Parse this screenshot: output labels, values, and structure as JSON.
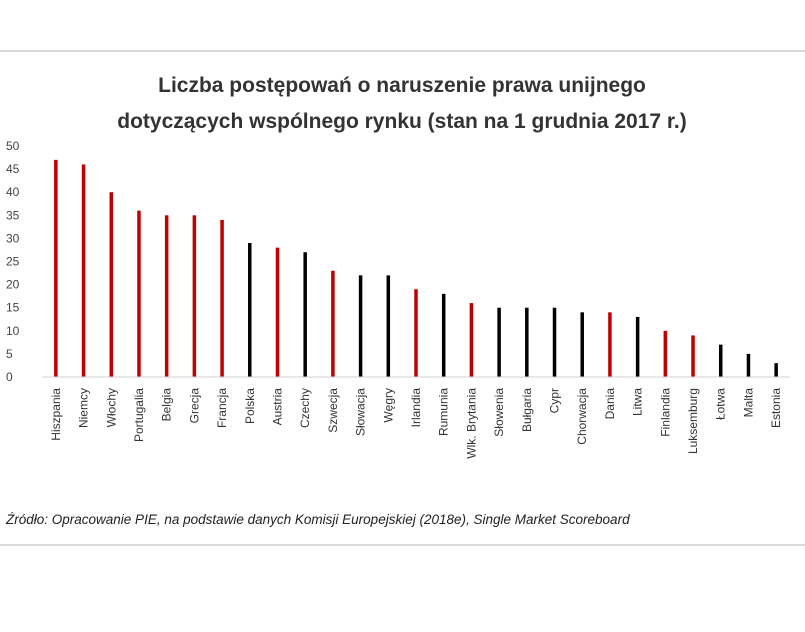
{
  "chart_data": {
    "type": "bar",
    "title_lines": [
      "Liczba postępowań o naruszenie prawa unijnego",
      "dotyczących wspólnego rynku (stan na 1 grudnia 2017 r.)"
    ],
    "xlabel": "",
    "ylabel": "",
    "ylim": [
      0,
      50
    ],
    "yticks": [
      0,
      5,
      10,
      15,
      20,
      25,
      30,
      35,
      40,
      45,
      50
    ],
    "grid": false,
    "legend": "none",
    "categories": [
      "Hiszpania",
      "Niemcy",
      "Włochy",
      "Portugalia",
      "Belgia",
      "Grecja",
      "Francja",
      "Polska",
      "Austria",
      "Czechy",
      "Szwecja",
      "Słowacja",
      "Węgry",
      "Irlandia",
      "Rumunia",
      "Wlk. Brytania",
      "Słowenia",
      "Bułgaria",
      "Cypr",
      "Chorwacja",
      "Dania",
      "Litwa",
      "Finlandia",
      "Luksemburg",
      "Łotwa",
      "Malta",
      "Estonia"
    ],
    "values": [
      47,
      46,
      40,
      36,
      35,
      35,
      34,
      29,
      28,
      27,
      23,
      22,
      22,
      19,
      18,
      16,
      15,
      15,
      15,
      14,
      14,
      13,
      10,
      9,
      7,
      5,
      3
    ],
    "bar_colors": [
      "#c00000",
      "#c00000",
      "#c00000",
      "#c00000",
      "#c00000",
      "#c00000",
      "#c00000",
      "#000000",
      "#c00000",
      "#000000",
      "#c00000",
      "#000000",
      "#000000",
      "#c00000",
      "#000000",
      "#c00000",
      "#000000",
      "#000000",
      "#000000",
      "#000000",
      "#c00000",
      "#000000",
      "#c00000",
      "#c00000",
      "#000000",
      "#000000",
      "#000000"
    ]
  },
  "source_note": "Źródło: Opracowanie PIE, na podstawie danych Komisji Europejskiej (2018e), Single Market Scoreboard"
}
